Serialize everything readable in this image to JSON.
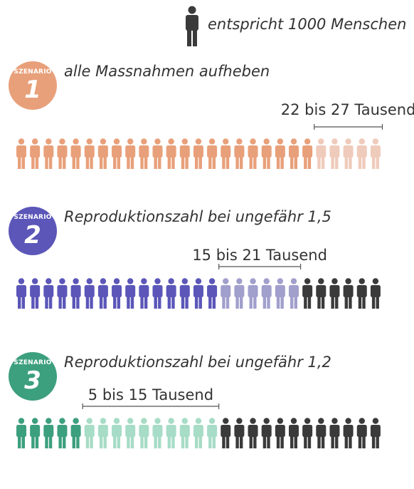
{
  "legend": {
    "text": "entspricht 1000 Menschen",
    "icon": "person-icon",
    "icon_color": "#3a3a3a",
    "people_per_icon": 1000
  },
  "chart_data": [
    {
      "type": "pictogram",
      "badge_word": "SZENARIO",
      "badge_number": "1",
      "title": "alle Massnahmen aufheben",
      "range_label": "22 bis 27 Tausend",
      "unit": "Tausend",
      "total_icons": 27,
      "low": 22,
      "high": 27,
      "color_solid": "#e8a07a",
      "color_range": "#efcbbb",
      "color_rest": "#3a3a3a"
    },
    {
      "type": "pictogram",
      "badge_word": "SZENARIO",
      "badge_number": "2",
      "title": "Reproduktionszahl bei ungefähr 1,5",
      "range_label": "15 bis 21 Tausend",
      "unit": "Tausend",
      "total_icons": 27,
      "low": 15,
      "high": 21,
      "color_solid": "#5b56b8",
      "color_range": "#a19fcc",
      "color_rest": "#3a3a3a"
    },
    {
      "type": "pictogram",
      "badge_word": "SZENARIO",
      "badge_number": "3",
      "title": "Reproduktionszahl bei ungefähr 1,2",
      "range_label": "5 bis 15 Tausend",
      "unit": "Tausend",
      "total_icons": 27,
      "low": 5,
      "high": 15,
      "color_solid": "#3c9f7d",
      "color_range": "#a7dcc6",
      "color_rest": "#3a3a3a"
    }
  ]
}
